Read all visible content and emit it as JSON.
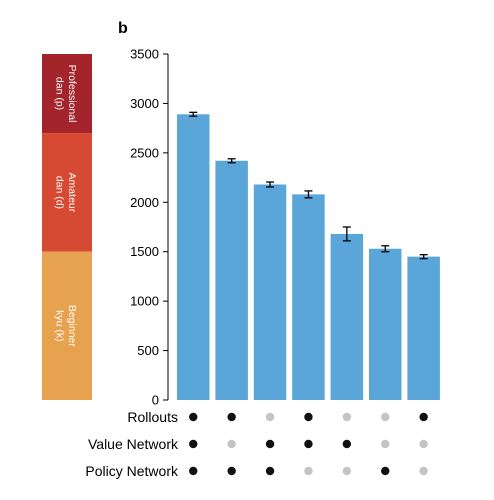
{
  "panel_label": "b",
  "rank_bands": [
    {
      "label_line1": "Professional",
      "label_line2": "dan (p)",
      "color": "#a3252b",
      "from": 2700,
      "to": 3500
    },
    {
      "label_line1": "Amateur",
      "label_line2": "dan (d)",
      "color": "#d64a34",
      "from": 1500,
      "to": 2700
    },
    {
      "label_line1": "Beginner",
      "label_line2": "kyu (k)",
      "color": "#e6a24e",
      "from": 0,
      "to": 1500
    }
  ],
  "chart_data": {
    "type": "bar",
    "ylim": [
      0,
      3500
    ],
    "yticks": [
      0,
      500,
      1000,
      1500,
      2000,
      2500,
      3000,
      3500
    ],
    "values": [
      2890,
      2420,
      2180,
      2080,
      1680,
      1530,
      1450
    ],
    "errors": [
      20,
      20,
      25,
      35,
      70,
      30,
      20
    ],
    "bar_color": "#5aa6d8",
    "components": [
      {
        "name": "Rollouts",
        "active": [
          true,
          true,
          false,
          true,
          false,
          false,
          true
        ]
      },
      {
        "name": "Value Network",
        "active": [
          true,
          false,
          true,
          true,
          true,
          false,
          false
        ]
      },
      {
        "name": "Policy Network",
        "active": [
          true,
          true,
          true,
          false,
          false,
          true,
          false
        ]
      }
    ],
    "dot_on_color": "#111111",
    "dot_off_color": "#c4c4c4"
  }
}
